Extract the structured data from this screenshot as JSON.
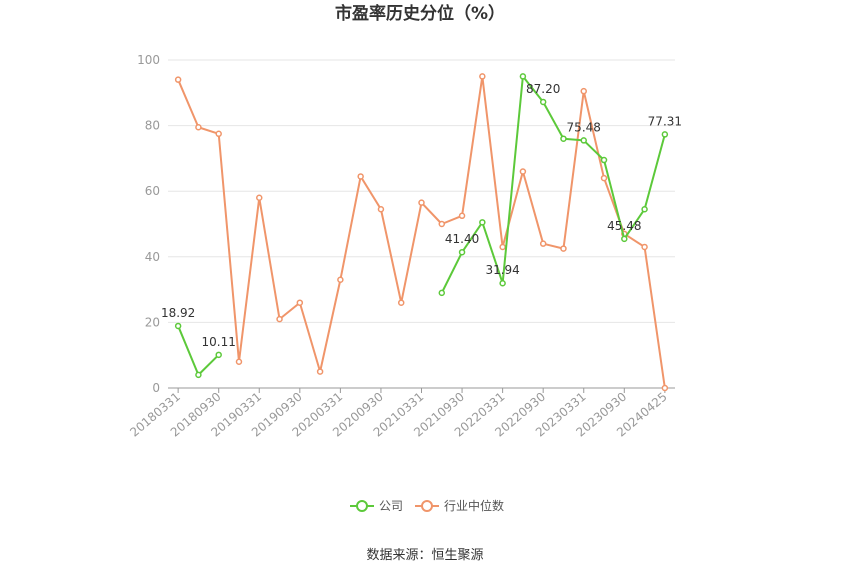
{
  "chart_data": {
    "type": "line",
    "title": "市盈率历史分位（%）",
    "ylim": [
      0,
      100
    ],
    "yticks": [
      0,
      20,
      40,
      60,
      80,
      100
    ],
    "grid": true,
    "legend_position": "bottom",
    "x": [
      "20180331",
      "20180630",
      "20180930",
      "20181231",
      "20190331",
      "20190630",
      "20190930",
      "20191231",
      "20200331",
      "20200630",
      "20200930",
      "20201231",
      "20210331",
      "20210630",
      "20210930",
      "20211231",
      "20220331",
      "20220630",
      "20220930",
      "20221231",
      "20230331",
      "20230630",
      "20230930",
      "20231231",
      "20240425"
    ],
    "xtick_labels": [
      "20180331",
      "20180930",
      "20190331",
      "20190930",
      "20200331",
      "20200930",
      "20210331",
      "20210930",
      "20220331",
      "20220930",
      "20230331",
      "20230930",
      "20240425"
    ],
    "series": [
      {
        "name": "公司",
        "color": "#5cc93a",
        "values": [
          18.92,
          4.0,
          10.11,
          null,
          null,
          null,
          null,
          null,
          null,
          null,
          null,
          null,
          null,
          29.0,
          41.4,
          50.5,
          31.94,
          95.0,
          87.2,
          76.0,
          75.48,
          69.5,
          45.48,
          54.5,
          77.31
        ],
        "labels": [
          {
            "index": 0,
            "text": "18.92"
          },
          {
            "index": 2,
            "text": "10.11"
          },
          {
            "index": 14,
            "text": "41.40"
          },
          {
            "index": 16,
            "text": "31.94"
          },
          {
            "index": 18,
            "text": "87.20"
          },
          {
            "index": 20,
            "text": "75.48"
          },
          {
            "index": 22,
            "text": "45.48"
          },
          {
            "index": 24,
            "text": "77.31"
          }
        ]
      },
      {
        "name": "行业中位数",
        "color": "#f0956a",
        "values": [
          94.0,
          79.5,
          77.5,
          8.0,
          58.0,
          21.0,
          26.0,
          5.0,
          33.0,
          64.5,
          54.5,
          26.0,
          56.5,
          50.0,
          52.5,
          95.0,
          43.0,
          66.0,
          44.0,
          42.5,
          90.5,
          64.0,
          47.0,
          43.0,
          0.0
        ]
      }
    ]
  },
  "source": "数据来源：恒生聚源"
}
